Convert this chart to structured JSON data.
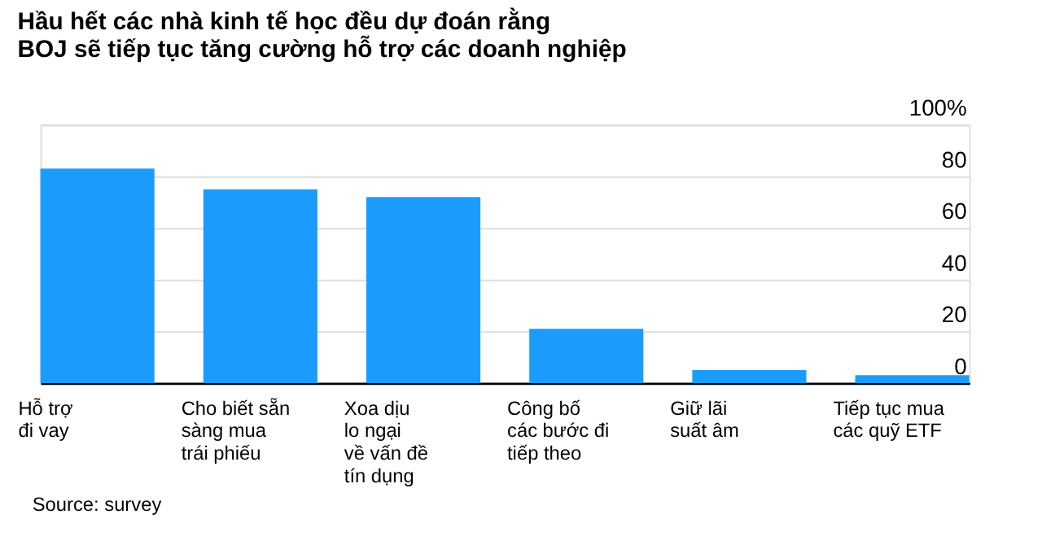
{
  "chart_data": {
    "type": "bar",
    "title": [
      "Hầu hết các nhà kinh tế học đều dự đoán rằng",
      "BOJ sẽ tiếp tục tăng cường hỗ trợ các doanh nghiệp"
    ],
    "categories": [
      "Hỗ trợ\nđi vay",
      "Cho biết sẵn\nsàng mua\ntrái phiếu",
      "Xoa dịu\nlo ngại\nvề vấn đề\ntín dụng",
      "Công bố\ncác bước đi\ntiếp theo",
      "Giữ lãi\nsuất âm",
      "Tiếp tục mua\ncác quỹ ETF"
    ],
    "values": [
      83,
      75,
      72,
      21,
      5,
      3
    ],
    "color": "#1b9cfc",
    "ylim": [
      0,
      100
    ],
    "yticks": [
      0,
      20,
      40,
      60,
      80,
      {
        "value": 100,
        "label": "100%"
      }
    ],
    "grid": "y",
    "annotations": [
      "Source: survey"
    ]
  }
}
